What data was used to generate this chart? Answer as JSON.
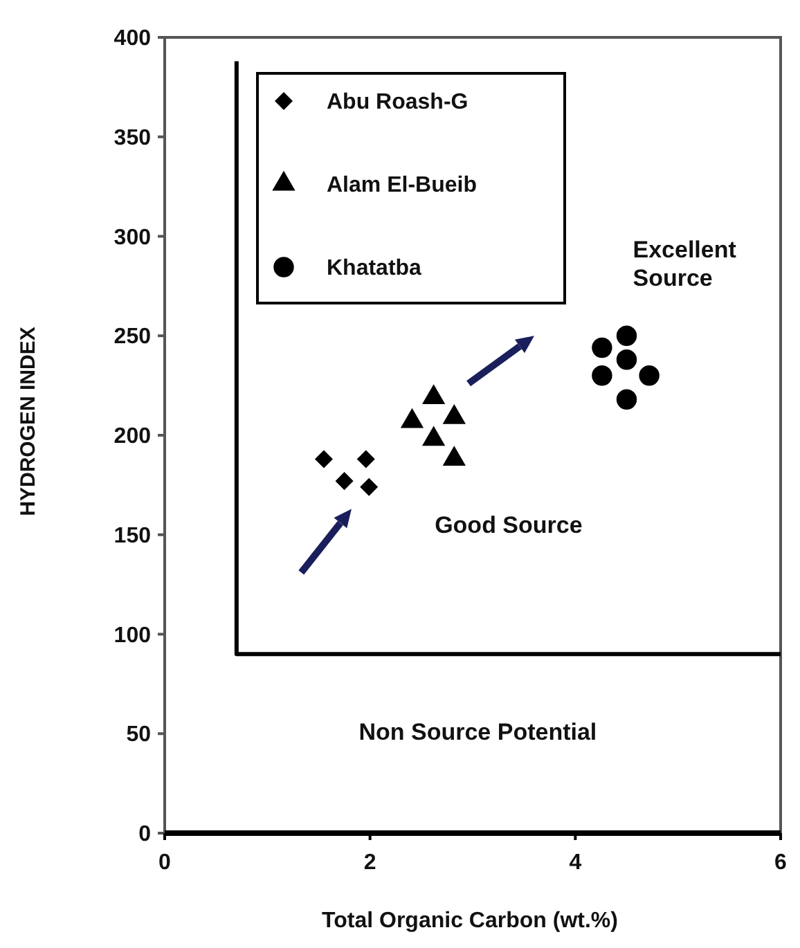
{
  "chart_data": {
    "type": "scatter",
    "xlabel": "Total Organic Carbon (wt.%)",
    "ylabel": "HYDROGEN INDEX",
    "xlim": [
      0,
      6
    ],
    "ylim": [
      0,
      400
    ],
    "xticks": [
      0,
      2,
      4,
      6
    ],
    "yticks": [
      0,
      50,
      100,
      150,
      200,
      250,
      300,
      350,
      400
    ],
    "grid": false,
    "legend": "top left",
    "series": [
      {
        "name": "Abu Roash-G",
        "color": "#000000",
        "marker": "diamond",
        "x": [
          1.55,
          1.96,
          1.75,
          1.99
        ],
        "values": [
          188,
          188,
          177,
          174
        ]
      },
      {
        "name": "Alam El-Bueib",
        "color": "#000000",
        "marker": "triangle",
        "x": [
          2.62,
          2.41,
          2.82,
          2.62,
          2.82
        ],
        "values": [
          219,
          207,
          209,
          198,
          188
        ]
      },
      {
        "name": "Khatatba",
        "color": "#000000",
        "marker": "circle",
        "x": [
          4.5,
          4.26,
          4.26,
          4.5,
          4.72,
          4.5
        ],
        "values": [
          250,
          244,
          230,
          238,
          230,
          218
        ]
      },
      {
        "type": "line",
        "color": "#000000",
        "marker": "none",
        "x": [
          0.7,
          0.7,
          6
        ],
        "values": [
          388,
          90,
          90
        ]
      }
    ],
    "annotations": [
      "Excellent Source",
      "Good Source",
      "Non Source Potential"
    ]
  }
}
